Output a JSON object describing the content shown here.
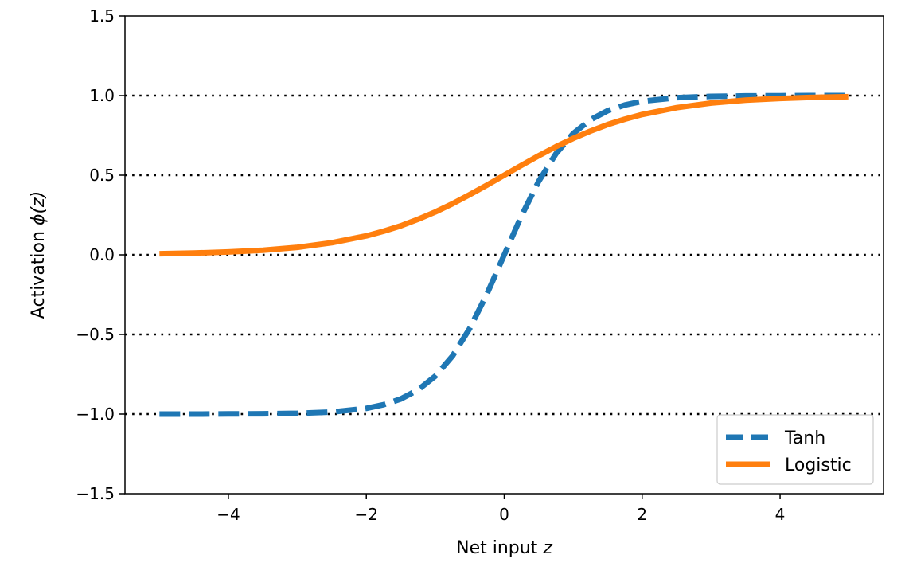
{
  "chart_data": {
    "type": "line",
    "xlabel_text": "Net input ",
    "xlabel_var": "z",
    "ylabel_text": "Activation ",
    "ylabel_func": "ϕ(z)",
    "xlim": [
      -5.5,
      5.5
    ],
    "ylim": [
      -1.5,
      1.5
    ],
    "xticks": [
      -4,
      -2,
      0,
      2,
      4
    ],
    "xtick_labels": [
      "−4",
      "−2",
      "0",
      "2",
      "4"
    ],
    "yticks": [
      -1.5,
      -1.0,
      -0.5,
      0.0,
      0.5,
      1.0,
      1.5
    ],
    "ytick_labels": [
      "−1.5",
      "−1.0",
      "−0.5",
      "0.0",
      "0.5",
      "1.0",
      "1.5"
    ],
    "hlines": [
      -1.0,
      -0.5,
      0.0,
      0.5,
      1.0
    ],
    "legend_position": "lower-right",
    "x": [
      -5.0,
      -4.5,
      -4.0,
      -3.5,
      -3.0,
      -2.5,
      -2.0,
      -1.75,
      -1.5,
      -1.25,
      -1.0,
      -0.75,
      -0.5,
      -0.25,
      0.0,
      0.25,
      0.5,
      0.75,
      1.0,
      1.25,
      1.5,
      1.75,
      2.0,
      2.5,
      3.0,
      3.5,
      4.0,
      4.5,
      5.0
    ],
    "series": [
      {
        "name": "Tanh",
        "style": "dashed",
        "color": "#1f77b4",
        "values": [
          -1.0,
          -1.0,
          -0.999,
          -0.998,
          -0.995,
          -0.987,
          -0.964,
          -0.941,
          -0.905,
          -0.848,
          -0.762,
          -0.635,
          -0.462,
          -0.245,
          0.0,
          0.245,
          0.462,
          0.635,
          0.762,
          0.848,
          0.905,
          0.941,
          0.964,
          0.987,
          0.995,
          0.998,
          0.999,
          1.0,
          1.0
        ]
      },
      {
        "name": "Logistic",
        "style": "solid",
        "color": "#ff7f0e",
        "values": [
          0.007,
          0.011,
          0.018,
          0.029,
          0.047,
          0.076,
          0.119,
          0.148,
          0.182,
          0.223,
          0.269,
          0.321,
          0.378,
          0.438,
          0.5,
          0.562,
          0.622,
          0.679,
          0.731,
          0.777,
          0.818,
          0.852,
          0.881,
          0.924,
          0.953,
          0.971,
          0.982,
          0.989,
          0.993
        ]
      }
    ]
  }
}
